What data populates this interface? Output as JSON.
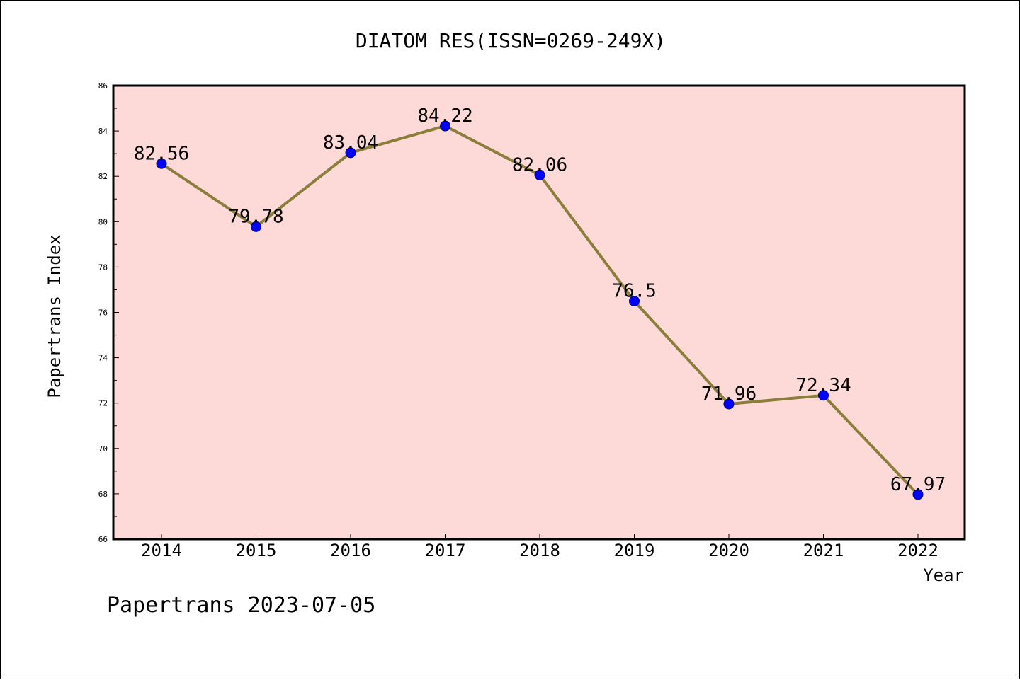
{
  "colors": {
    "plot_background": "#fddad8",
    "line": "#8b7d3a",
    "marker": "#0000ff",
    "axis": "#000000"
  },
  "footer_text": "Papertrans 2023-07-05",
  "chart_data": {
    "type": "line",
    "title": "DIATOM RES(ISSN=0269-249X)",
    "xlabel": "Year",
    "ylabel": "Papertrans Index",
    "categories": [
      "2014",
      "2015",
      "2016",
      "2017",
      "2018",
      "2019",
      "2020",
      "2021",
      "2022"
    ],
    "series": [
      {
        "values": [
          82.56,
          79.78,
          83.04,
          84.22,
          82.06,
          76.5,
          71.96,
          72.34,
          67.97
        ],
        "labels": [
          "82.56",
          "79.78",
          "83.04",
          "84.22",
          "82.06",
          "76.5",
          "71.96",
          "72.34",
          "67.97"
        ]
      }
    ],
    "ylim": [
      66,
      86
    ],
    "yticks": [
      "66",
      "68",
      "70",
      "72",
      "74",
      "76",
      "78",
      "80",
      "82",
      "84",
      "86"
    ],
    "grid": false,
    "legend": "none"
  }
}
